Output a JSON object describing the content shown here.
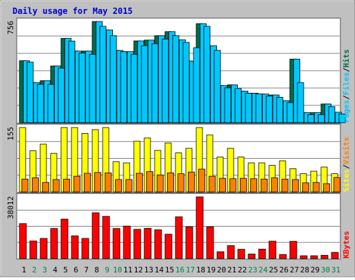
{
  "colors": {
    "background": "#c0c0c0",
    "panel": "#ffffff",
    "frame": "#808080",
    "gridline": "#808080",
    "title": "#0000c8",
    "hits": "#006a50",
    "files": "#00c8ff",
    "pages": "#00c8ff",
    "visits": "#ff7f00",
    "sites": "#ffff00",
    "kbytes": "#ff0000",
    "day_default": "#000000",
    "day_weekend": "#00804a"
  },
  "chart_data": {
    "type": "bar",
    "title": "Daily usage for May 2015",
    "categories": [
      "1",
      "2",
      "3",
      "4",
      "5",
      "6",
      "7",
      "8",
      "9",
      "10",
      "11",
      "12",
      "13",
      "14",
      "15",
      "16",
      "17",
      "18",
      "19",
      "20",
      "21",
      "22",
      "23",
      "24",
      "25",
      "26",
      "27",
      "28",
      "29",
      "30",
      "31"
    ],
    "weekend_days": [
      "2",
      "3",
      "9",
      "10",
      "16",
      "17",
      "23",
      "24",
      "30",
      "31"
    ],
    "panels": [
      {
        "id": "hits-files-pages",
        "ytick": "756",
        "ymax": 756,
        "legend": [
          "Pages",
          "/",
          "Files",
          "/",
          "Hits"
        ],
        "series": [
          {
            "name": "Hits",
            "values": [
              463,
              300,
              314,
              424,
              630,
              535,
              535,
              756,
              693,
              540,
              531,
              611,
              617,
              650,
              680,
              619,
              460,
              740,
              575,
              277,
              283,
              236,
              220,
              214,
              207,
              164,
              475,
              75,
              75,
              140,
              78
            ]
          },
          {
            "name": "Files",
            "values": [
              463,
              300,
              314,
              424,
              630,
              535,
              535,
              756,
              693,
              540,
              531,
              611,
              617,
              650,
              680,
              619,
              460,
              740,
              575,
              277,
              283,
              236,
              220,
              214,
              207,
              164,
              475,
              75,
              75,
              140,
              78
            ]
          },
          {
            "name": "Pages",
            "values": [
              452,
              286,
              286,
              408,
              610,
              520,
              510,
              720,
              650,
              530,
              510,
              575,
              590,
              625,
              650,
              600,
              560,
              720,
              540,
              260,
              255,
              220,
              215,
              200,
              190,
              150,
              300,
              60,
              60,
              120,
              65
            ]
          }
        ]
      },
      {
        "id": "visits-sites",
        "ytick": "155",
        "ymax": 155,
        "legend": [
          "Sites",
          "/",
          "Visits"
        ],
        "series": [
          {
            "name": "Sites",
            "values": [
              155,
              99,
              115,
              93,
              155,
              155,
              141,
              150,
              155,
              73,
              70,
              122,
              130,
              100,
              118,
              94,
              105,
              155,
              137,
              84,
              105,
              84,
              70,
              70,
              64,
              75,
              56,
              44,
              50,
              60,
              44
            ]
          },
          {
            "name": "Visits",
            "values": [
              31,
              34,
              23,
              30,
              31,
              38,
              45,
              47,
              46,
              30,
              30,
              45,
              49,
              41,
              46,
              44,
              48,
              55,
              38,
              33,
              32,
              33,
              32,
              31,
              34,
              31,
              30,
              22,
              23,
              20,
              35
            ]
          }
        ]
      },
      {
        "id": "kbytes",
        "ytick": "38012",
        "ymax": 38012,
        "legend": [
          "KBytes"
        ],
        "series": [
          {
            "name": "KBytes",
            "values": [
              21500,
              10800,
              12400,
              18500,
              24300,
              14000,
              12400,
              28200,
              26000,
              18500,
              20000,
              18000,
              18600,
              17700,
              15000,
              25700,
              19500,
              38012,
              19500,
              4200,
              8000,
              5700,
              2800,
              5800,
              10700,
              2500,
              10600,
              1700,
              1700,
              2000,
              3800
            ]
          }
        ]
      }
    ]
  }
}
